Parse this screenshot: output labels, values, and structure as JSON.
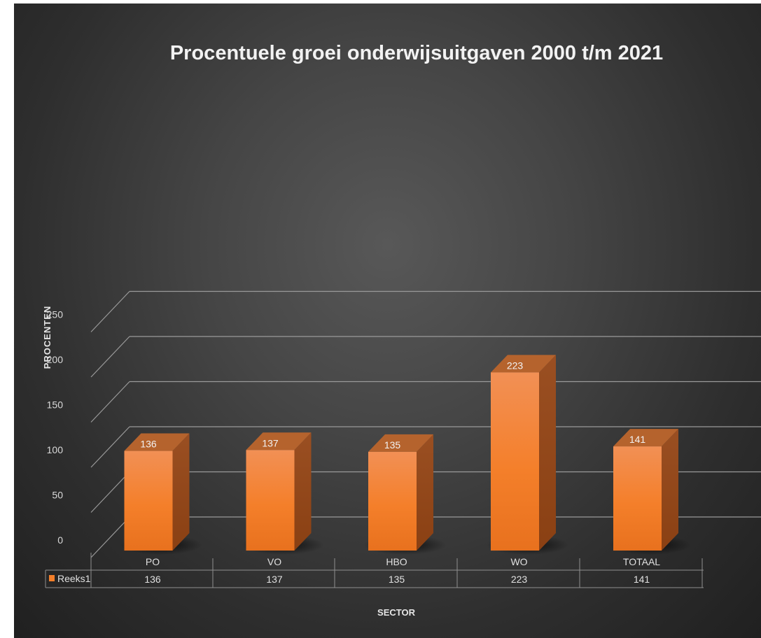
{
  "chart_data": {
    "type": "bar",
    "title": "Procentuele groei onderwijsuitgaven 2000 t/m 2021",
    "xlabel": "SECTOR",
    "ylabel": "PROCENTEN",
    "categories": [
      "PO",
      "VO",
      "HBO",
      "WO",
      "TOTAAL"
    ],
    "series": [
      {
        "name": "Reeks1",
        "values": [
          136,
          137,
          135,
          223,
          141
        ]
      }
    ],
    "ylim": [
      0,
      250
    ],
    "yticks": [
      0,
      50,
      100,
      150,
      200,
      250
    ],
    "grid": true,
    "legend": "data-table",
    "bar_color": "#f47f2a",
    "data_table": true
  }
}
